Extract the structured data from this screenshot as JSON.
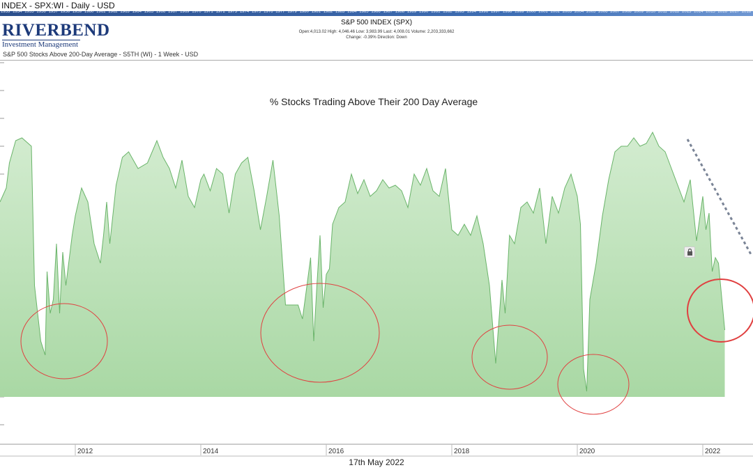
{
  "window_title": "INDEX - SPX:WI - Daily - USD",
  "year_strip": [
    "1953",
    "1954",
    "1955",
    "1956",
    "1957",
    "1958",
    "1959",
    "1960",
    "1961",
    "1962",
    "1963",
    "1964",
    "1965",
    "1966",
    "1967",
    "1969",
    "1970",
    "1971",
    "1972",
    "1973",
    "1974",
    "1975",
    "1976",
    "1977",
    "1979",
    "1980",
    "1981",
    "1982",
    "1983",
    "1984",
    "1985",
    "1986",
    "1987",
    "1988",
    "1989",
    "1990",
    "1991",
    "1992",
    "1993",
    "1994",
    "1996",
    "1997",
    "1998",
    "1999",
    "2000",
    "2001",
    "2002",
    "2003",
    "2004",
    "2005",
    "2006",
    "2007",
    "2008",
    "2009",
    "2010",
    "2011",
    "2012",
    "2013",
    "2014",
    "2015",
    "2016",
    "2017",
    "2018"
  ],
  "logo": {
    "name": "RIVERBEND",
    "sub": "Investment Management"
  },
  "index_header": {
    "title": "S&P 500 INDEX (SPX)",
    "stats": "Open:4,013.02   High: 4,046.46   Low: 3,983.99   Last: 4,008.01   Volume: 2,203,333,662",
    "stats2": "Change: -0.39%   Direction: Down"
  },
  "panel_subtitle": "S&P 500 Stocks Above 200-Day Average - S5TH (WI) - 1 Week - USD",
  "date_stamp": "17th May 2022",
  "colors": {
    "fill": "#a9d8a4",
    "line": "#6ab46a",
    "circle": "#e04040",
    "trend": "#7a8496"
  },
  "chart_data": {
    "type": "area",
    "title": "% Stocks Trading Above Their 200 Day Average",
    "xlabel": "",
    "ylabel": "",
    "x_ticks": [
      "2012",
      "2014",
      "2016",
      "2018",
      "2020",
      "2022"
    ],
    "xlim": [
      2010.8,
      2022.8
    ],
    "ylim": [
      0,
      100
    ],
    "grid": false,
    "series": [
      {
        "x": [
          2010.8,
          2010.9,
          2010.95,
          2011.05,
          2011.15,
          2011.3,
          2011.35,
          2011.45,
          2011.52,
          2011.55,
          2011.6,
          2011.65,
          2011.7,
          2011.75,
          2011.8,
          2011.85,
          2011.95,
          2012.0,
          2012.1,
          2012.2,
          2012.3,
          2012.4,
          2012.45,
          2012.5,
          2012.55,
          2012.65,
          2012.75,
          2012.85,
          2013.0,
          2013.15,
          2013.3,
          2013.4,
          2013.5,
          2013.6,
          2013.7,
          2013.8,
          2013.9,
          2014.0,
          2014.05,
          2014.15,
          2014.25,
          2014.35,
          2014.45,
          2014.55,
          2014.65,
          2014.75,
          2014.85,
          2014.95,
          2015.05,
          2015.15,
          2015.25,
          2015.35,
          2015.45,
          2015.5,
          2015.55,
          2015.62,
          2015.68,
          2015.75,
          2015.8,
          2015.85,
          2015.9,
          2015.95,
          2016.0,
          2016.05,
          2016.1,
          2016.2,
          2016.3,
          2016.4,
          2016.5,
          2016.6,
          2016.7,
          2016.8,
          2016.9,
          2017.0,
          2017.1,
          2017.2,
          2017.3,
          2017.4,
          2017.5,
          2017.6,
          2017.7,
          2017.8,
          2017.9,
          2018.0,
          2018.1,
          2018.2,
          2018.3,
          2018.4,
          2018.5,
          2018.6,
          2018.7,
          2018.8,
          2018.85,
          2018.92,
          2019.0,
          2019.1,
          2019.2,
          2019.3,
          2019.4,
          2019.5,
          2019.6,
          2019.7,
          2019.8,
          2019.9,
          2020.0,
          2020.05,
          2020.1,
          2020.15,
          2020.2,
          2020.3,
          2020.4,
          2020.5,
          2020.6,
          2020.7,
          2020.8,
          2020.9,
          2021.0,
          2021.1,
          2021.2,
          2021.3,
          2021.4,
          2021.5,
          2021.6,
          2021.7,
          2021.8,
          2021.9,
          2022.0,
          2022.05,
          2022.1,
          2022.15,
          2022.2,
          2022.25,
          2022.3,
          2022.35
        ],
        "values": [
          70,
          75,
          84,
          92,
          93,
          90,
          40,
          20,
          15,
          45,
          30,
          35,
          55,
          30,
          52,
          40,
          58,
          65,
          75,
          70,
          55,
          48,
          58,
          70,
          55,
          76,
          86,
          88,
          82,
          84,
          92,
          86,
          82,
          75,
          85,
          72,
          68,
          78,
          80,
          74,
          82,
          80,
          66,
          80,
          84,
          86,
          74,
          60,
          72,
          85,
          65,
          33,
          33,
          33,
          33,
          28,
          38,
          50,
          20,
          40,
          58,
          32,
          44,
          46,
          62,
          68,
          70,
          80,
          73,
          78,
          72,
          74,
          78,
          75,
          76,
          74,
          68,
          80,
          76,
          82,
          74,
          72,
          82,
          60,
          58,
          62,
          58,
          65,
          55,
          40,
          12,
          42,
          30,
          58,
          55,
          68,
          70,
          66,
          75,
          55,
          72,
          66,
          75,
          80,
          72,
          62,
          10,
          2,
          35,
          48,
          65,
          78,
          88,
          90,
          90,
          93,
          90,
          91,
          95,
          90,
          88,
          82,
          76,
          70,
          78,
          56,
          72,
          60,
          66,
          45,
          50,
          48,
          36,
          24
        ]
      }
    ],
    "annotations": {
      "circle_regions": [
        "2011",
        "2015-2016",
        "2018",
        "2020",
        "2022"
      ],
      "trend_line": "dashed downtrend from 2021 peak"
    }
  }
}
